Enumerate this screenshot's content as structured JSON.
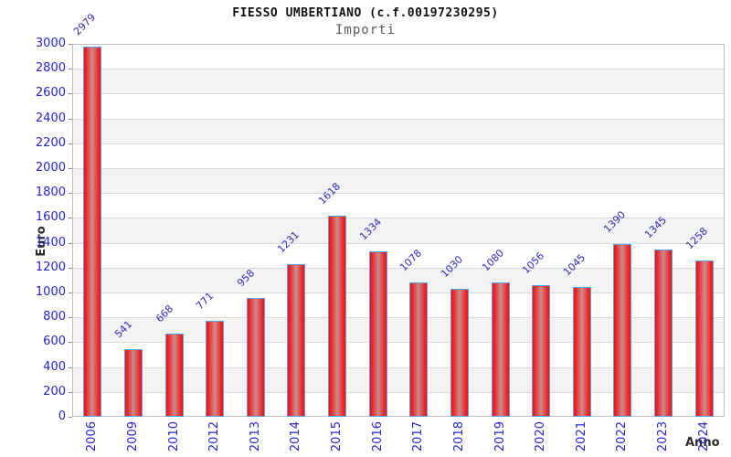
{
  "chart_data": {
    "type": "bar",
    "title": "FIESSO UMBERTIANO (c.f.00197230295)",
    "subtitle": "Importi",
    "xlabel": "Anno",
    "ylabel": "Euro",
    "categories": [
      "2006",
      "2009",
      "2010",
      "2012",
      "2013",
      "2014",
      "2015",
      "2016",
      "2017",
      "2018",
      "2019",
      "2020",
      "2021",
      "2022",
      "2023",
      "2024"
    ],
    "values": [
      2979,
      541,
      668,
      771,
      958,
      1231,
      1618,
      1334,
      1078,
      1030,
      1080,
      1056,
      1045,
      1390,
      1345,
      1258
    ],
    "ylim": [
      0,
      3000
    ],
    "ytick_step": 200,
    "grid": true,
    "legend": false,
    "colors": {
      "bar_edge": "#f1101f",
      "bar_center": "#c98c8d",
      "bar_border": "#58a4e6",
      "tick_label": "#2525cc",
      "value_label": "#2b2bbf",
      "stripe": "#f3f3f3",
      "gridline": "#d9d9d9",
      "plot_border": "#c2c2c2",
      "axis_label_text": "#2b2b2b"
    }
  }
}
